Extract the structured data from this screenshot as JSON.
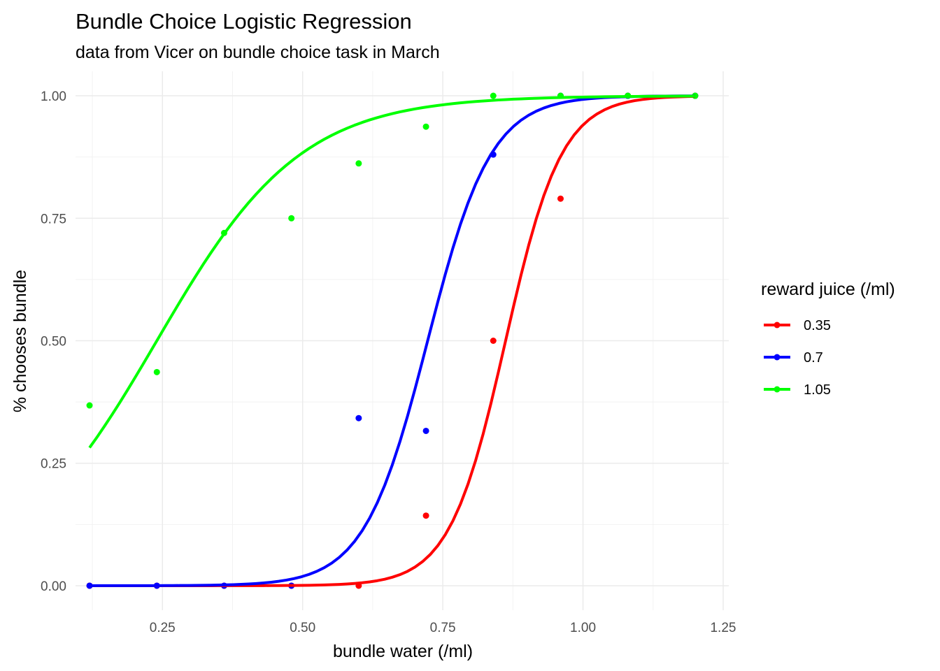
{
  "chart_data": {
    "type": "line",
    "title": "Bundle Choice Logistic Regression",
    "subtitle": "data from Vicer on bundle choice task in March",
    "xlabel": "bundle water (/ml)",
    "ylabel": "% chooses bundle",
    "xlim": [
      0.095,
      1.26
    ],
    "ylim": [
      -0.05,
      1.05
    ],
    "x_ticks": [
      0.25,
      0.5,
      0.75,
      1.0,
      1.25
    ],
    "x_tick_labels": [
      "0.25",
      "0.50",
      "0.75",
      "1.00",
      "1.25"
    ],
    "y_ticks": [
      0,
      0.25,
      0.5,
      0.75,
      1.0
    ],
    "y_tick_labels": [
      "0.00",
      "0.25",
      "0.50",
      "0.75",
      "1.00"
    ],
    "grid": true,
    "legend": {
      "title": "reward juice (/ml)",
      "position": "right"
    },
    "series": [
      {
        "name": "0.35",
        "color": "#ff0000",
        "fit": {
          "midpoint": 0.862,
          "slope": 20.0,
          "x_start": 0.12,
          "x_end": 1.2
        },
        "points": [
          {
            "x": 0.12,
            "y": 0.0
          },
          {
            "x": 0.24,
            "y": 0.0
          },
          {
            "x": 0.36,
            "y": 0.0
          },
          {
            "x": 0.48,
            "y": 0.0
          },
          {
            "x": 0.6,
            "y": 0.0
          },
          {
            "x": 0.72,
            "y": 0.143
          },
          {
            "x": 0.84,
            "y": 0.5
          },
          {
            "x": 0.96,
            "y": 0.79
          },
          {
            "x": 1.08,
            "y": 1.0
          },
          {
            "x": 1.2,
            "y": 1.0
          }
        ]
      },
      {
        "name": "0.7",
        "color": "#0000ff",
        "fit": {
          "midpoint": 0.723,
          "slope": 17.7,
          "x_start": 0.12,
          "x_end": 1.2
        },
        "points": [
          {
            "x": 0.12,
            "y": 0.0
          },
          {
            "x": 0.24,
            "y": 0.0
          },
          {
            "x": 0.36,
            "y": 0.0
          },
          {
            "x": 0.48,
            "y": 0.0
          },
          {
            "x": 0.6,
            "y": 0.342
          },
          {
            "x": 0.72,
            "y": 0.316
          },
          {
            "x": 0.84,
            "y": 0.88
          },
          {
            "x": 0.96,
            "y": 1.0
          },
          {
            "x": 1.08,
            "y": 1.0
          },
          {
            "x": 1.2,
            "y": 1.0
          }
        ]
      },
      {
        "name": "1.05",
        "color": "#00ff00",
        "fit": {
          "midpoint": 0.24,
          "slope": 7.8,
          "x_start": 0.12,
          "x_end": 1.2
        },
        "points": [
          {
            "x": 0.12,
            "y": 0.368
          },
          {
            "x": 0.24,
            "y": 0.436
          },
          {
            "x": 0.36,
            "y": 0.72
          },
          {
            "x": 0.48,
            "y": 0.75
          },
          {
            "x": 0.6,
            "y": 0.862
          },
          {
            "x": 0.72,
            "y": 0.937
          },
          {
            "x": 0.84,
            "y": 1.0
          },
          {
            "x": 0.96,
            "y": 1.0
          },
          {
            "x": 1.08,
            "y": 1.0
          },
          {
            "x": 1.2,
            "y": 1.0
          }
        ]
      }
    ]
  }
}
